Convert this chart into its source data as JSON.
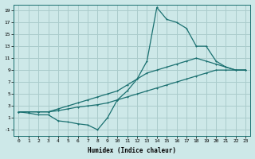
{
  "xlabel": "Humidex (Indice chaleur)",
  "bg_color": "#cde8e8",
  "grid_color": "#aacccc",
  "line_color": "#1a7070",
  "xlim": [
    -0.5,
    23.5
  ],
  "ylim": [
    -2,
    20
  ],
  "xticks": [
    0,
    1,
    2,
    3,
    4,
    5,
    6,
    7,
    8,
    9,
    10,
    11,
    12,
    13,
    14,
    15,
    16,
    17,
    18,
    19,
    20,
    21,
    22,
    23
  ],
  "yticks": [
    -1,
    1,
    3,
    5,
    7,
    9,
    11,
    13,
    15,
    17,
    19
  ],
  "line1_x": [
    0,
    1,
    2,
    3,
    4,
    5,
    6,
    7,
    8,
    9,
    10,
    11,
    12,
    13,
    14,
    15,
    16,
    17,
    18,
    19,
    20,
    21,
    22,
    23
  ],
  "line1_y": [
    2.0,
    2.0,
    2.0,
    2.0,
    2.2,
    2.5,
    2.8,
    3.0,
    3.2,
    3.5,
    4.0,
    4.5,
    5.0,
    5.5,
    6.0,
    6.5,
    7.0,
    7.5,
    8.0,
    8.5,
    9.0,
    9.0,
    9.0,
    9.0
  ],
  "line2_x": [
    0,
    1,
    2,
    3,
    4,
    5,
    6,
    7,
    8,
    9,
    10,
    11,
    12,
    13,
    14,
    15,
    16,
    17,
    18,
    19,
    20,
    21,
    22,
    23
  ],
  "line2_y": [
    2.0,
    2.0,
    2.0,
    2.0,
    2.5,
    3.0,
    3.5,
    4.0,
    4.5,
    5.0,
    5.5,
    6.5,
    7.5,
    8.5,
    9.0,
    9.5,
    10.0,
    10.5,
    11.0,
    10.5,
    10.0,
    9.5,
    9.0,
    9.0
  ],
  "line3_x": [
    0,
    1,
    2,
    3,
    4,
    5,
    6,
    7,
    8,
    9,
    10,
    11,
    12,
    13,
    14,
    15,
    16,
    17,
    18,
    19,
    20,
    21,
    22,
    23
  ],
  "line3_y": [
    2.0,
    1.8,
    1.5,
    1.5,
    0.5,
    0.3,
    0.0,
    -0.2,
    -1.0,
    1.0,
    4.0,
    5.5,
    7.5,
    10.5,
    19.5,
    17.5,
    17.0,
    16.0,
    13.0,
    13.0,
    10.5,
    9.5,
    9.0,
    9.0
  ]
}
